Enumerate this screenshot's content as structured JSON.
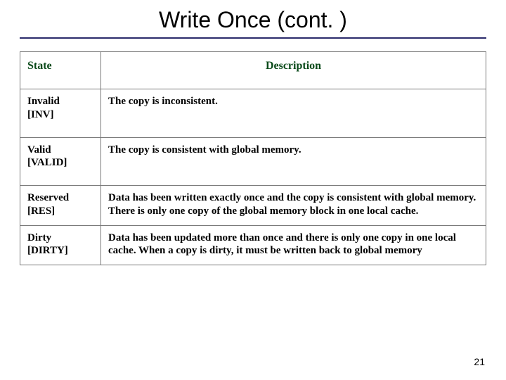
{
  "title": "Write Once (cont. )",
  "page_number": "21",
  "divider_color": "#2b2b6b",
  "header_text_color": "#0a4a1a",
  "table": {
    "columns": [
      "State",
      "Description"
    ],
    "column_widths": [
      "115px",
      "auto"
    ],
    "border_color": "#7a7a7a",
    "rows": [
      {
        "state_name": "Invalid",
        "state_tag": "[INV]",
        "description": "The copy is inconsistent."
      },
      {
        "state_name": "Valid",
        "state_tag": "[VALID]",
        "description": "The copy is consistent with global memory."
      },
      {
        "state_name": "Reserved",
        "state_tag": "[RES]",
        "description": "Data has been written exactly once and the copy is consistent with global memory. There is only one copy of the global memory block in one local cache."
      },
      {
        "state_name": "Dirty",
        "state_tag": "[DIRTY]",
        "description": "Data has been updated more than once and there is only one copy in one local cache. When a copy is dirty, it must be written back to global memory"
      }
    ]
  }
}
